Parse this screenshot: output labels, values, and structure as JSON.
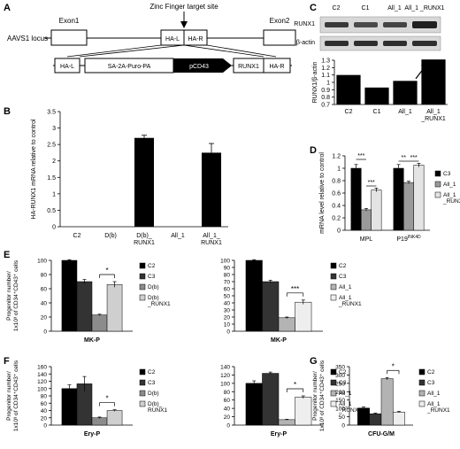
{
  "panels": {
    "A": {
      "label": "A",
      "locus_label": "AAVS1 locus",
      "zf_label": "Zinc Finger target site",
      "exon1": "Exon1",
      "exon2": "Exon2",
      "hal": "HA-L",
      "har": "HA-R",
      "cassette": [
        "HA-L",
        "SA-2A-Puro-PA",
        "pCD43",
        "RUNX1",
        "HA-R"
      ]
    },
    "C_blot": {
      "label": "C",
      "lanes": [
        "C2",
        "C1",
        "All_1",
        "All_1 _RUNX1"
      ],
      "rows": [
        "RUNX1",
        "β-actin"
      ]
    }
  },
  "chart_data": [
    {
      "panel": "C",
      "type": "bar",
      "categories": [
        "C2",
        "C1",
        "All_1",
        "All_1 _RUNX1"
      ],
      "values": [
        1.1,
        0.93,
        1.02,
        1.31
      ],
      "ylabel": "RUNX1/β-actin",
      "ylim": [
        0.7,
        1.3
      ],
      "yticks": [
        0.7,
        0.8,
        0.9,
        1.0,
        1.1,
        1.2,
        1.3
      ],
      "ytick_labels": [
        "0.7",
        "0.8",
        "0.9",
        "1",
        "1.1",
        "1.2",
        "1.3"
      ],
      "annotations": [
        "arrow pointing to All_1_RUNX1 bar"
      ]
    },
    {
      "panel": "B",
      "type": "bar",
      "categories": [
        "C2",
        "D(b)",
        "D(b)_ RUNX1",
        "All_1",
        "All_1_ RUNX1"
      ],
      "values": [
        0,
        0,
        2.7,
        0,
        2.25
      ],
      "errors": [
        0,
        0,
        0.08,
        0,
        0.28
      ],
      "ylabel": "HA-RUNX1 mRNA relative to control",
      "ylim": [
        0,
        3.5
      ],
      "yticks": [
        0,
        0.5,
        1,
        1.5,
        2,
        2.5,
        3,
        3.5
      ],
      "ytick_labels": [
        "0",
        "0.5",
        "1",
        "1.5",
        "2",
        "2.5",
        "3",
        "3.5"
      ]
    },
    {
      "panel": "D",
      "type": "bar",
      "categories": [
        "MPL",
        "P19INK4D"
      ],
      "series": [
        {
          "name": "C3",
          "values": [
            1.0,
            1.0
          ],
          "errors": [
            0.06,
            0.06
          ],
          "color": "#000000"
        },
        {
          "name": "All_1",
          "values": [
            0.33,
            0.77
          ],
          "errors": [
            0.02,
            0.02
          ],
          "color": "#9a9a9a"
        },
        {
          "name": "All_1 _RUNX1",
          "values": [
            0.65,
            1.05
          ],
          "errors": [
            0.03,
            0.03
          ],
          "color": "#e4e4e4"
        }
      ],
      "ylabel": "mRNA level relative to control",
      "ylim": [
        0,
        1.2
      ],
      "yticks": [
        0,
        0.2,
        0.4,
        0.6,
        0.8,
        1.0,
        1.2
      ],
      "ytick_labels": [
        "0",
        "0.2",
        "0.4",
        "0.6",
        "0.8",
        "1",
        "1.2"
      ],
      "significance": [
        "***",
        "***",
        "**",
        "***"
      ]
    },
    {
      "panel": "E-left",
      "type": "bar",
      "categories": [
        "MK-P"
      ],
      "series": [
        {
          "name": "C2",
          "values": [
            100
          ],
          "errors": [
            1
          ],
          "color": "#000000"
        },
        {
          "name": "C3",
          "values": [
            70
          ],
          "errors": [
            3
          ],
          "color": "#333333"
        },
        {
          "name": "D(b)",
          "values": [
            23
          ],
          "errors": [
            1
          ],
          "color": "#8c8c8c"
        },
        {
          "name": "D(b) _RUNX1",
          "values": [
            66
          ],
          "errors": [
            4
          ],
          "color": "#cfcfcf"
        }
      ],
      "ylabel": "Progenitor number/ 1x10³ of CD34⁺CD43⁺ cells",
      "ylim": [
        0,
        100
      ],
      "yticks": [
        0,
        20,
        40,
        60,
        80,
        100
      ],
      "ytick_labels": [
        "0",
        "20",
        "40",
        "60",
        "80",
        "100"
      ],
      "significance": [
        "*"
      ]
    },
    {
      "panel": "E-right",
      "type": "bar",
      "categories": [
        "MK-P"
      ],
      "series": [
        {
          "name": "C2",
          "values": [
            100
          ],
          "errors": [
            1
          ],
          "color": "#000000"
        },
        {
          "name": "C3",
          "values": [
            70
          ],
          "errors": [
            2
          ],
          "color": "#333333"
        },
        {
          "name": "All_1",
          "values": [
            19
          ],
          "errors": [
            1
          ],
          "color": "#b3b3b3"
        },
        {
          "name": "All_1 _RUNX1",
          "values": [
            41
          ],
          "errors": [
            3
          ],
          "color": "#eeeeee"
        }
      ],
      "ylim": [
        0,
        100
      ],
      "yticks": [
        0,
        10,
        20,
        30,
        40,
        50,
        60,
        70,
        80,
        90,
        100
      ],
      "ytick_labels": [
        "0",
        "10",
        "20",
        "30",
        "40",
        "50",
        "60",
        "70",
        "80",
        "90",
        "100"
      ],
      "significance": [
        "***"
      ]
    },
    {
      "panel": "F-left",
      "type": "bar",
      "categories": [
        "Ery-P"
      ],
      "series": [
        {
          "name": "C2",
          "values": [
            100
          ],
          "errors": [
            10
          ],
          "color": "#000000"
        },
        {
          "name": "C3",
          "values": [
            113
          ],
          "errors": [
            20
          ],
          "color": "#333333"
        },
        {
          "name": "D(b)",
          "values": [
            20
          ],
          "errors": [
            2
          ],
          "color": "#8c8c8c"
        },
        {
          "name": "D(b)_ RUNX1",
          "values": [
            40
          ],
          "errors": [
            2
          ],
          "color": "#cfcfcf"
        }
      ],
      "ylabel": "Progenitor number/ 1x10³ of CD34⁺CD43⁺ cells",
      "ylim": [
        0,
        160
      ],
      "yticks": [
        0,
        20,
        40,
        60,
        80,
        100,
        120,
        140,
        160
      ],
      "ytick_labels": [
        "0",
        "20",
        "40",
        "60",
        "80",
        "100",
        "120",
        "140",
        "160"
      ],
      "significance": [
        "*"
      ]
    },
    {
      "panel": "F-right",
      "type": "bar",
      "categories": [
        "Ery-P"
      ],
      "series": [
        {
          "name": "C2",
          "values": [
            100
          ],
          "errors": [
            6
          ],
          "color": "#000000"
        },
        {
          "name": "C3",
          "values": [
            124
          ],
          "errors": [
            3
          ],
          "color": "#333333"
        },
        {
          "name": "All_1",
          "values": [
            13
          ],
          "errors": [
            1
          ],
          "color": "#b3b3b3"
        },
        {
          "name": "All_1 _RUNX1",
          "values": [
            67
          ],
          "errors": [
            3
          ],
          "color": "#eeeeee"
        }
      ],
      "ylim": [
        0,
        140
      ],
      "yticks": [
        0,
        20,
        40,
        60,
        80,
        100,
        120,
        140
      ],
      "ytick_labels": [
        "0",
        "20",
        "40",
        "60",
        "80",
        "100",
        "120",
        "140"
      ],
      "significance": [
        "*"
      ]
    },
    {
      "panel": "G",
      "type": "bar",
      "categories": [
        "CFU-G/M"
      ],
      "series": [
        {
          "name": "C2",
          "values": [
            102
          ],
          "errors": [
            6
          ],
          "color": "#000000"
        },
        {
          "name": "C3",
          "values": [
            68
          ],
          "errors": [
            4
          ],
          "color": "#333333"
        },
        {
          "name": "All_1",
          "values": [
            278
          ],
          "errors": [
            7
          ],
          "color": "#b3b3b3"
        },
        {
          "name": "All_1 _RUNX1",
          "values": [
            78
          ],
          "errors": [
            4
          ],
          "color": "#eeeeee"
        }
      ],
      "ylabel": "Progenitor number/ 1x10³ of CD34⁺CD43⁺ cells",
      "ylim": [
        0,
        350
      ],
      "yticks": [
        0,
        50,
        100,
        150,
        200,
        250,
        300,
        350
      ],
      "ytick_labels": [
        "0",
        "50",
        "100",
        "150",
        "200",
        "250",
        "300",
        "350"
      ],
      "significance": [
        "*"
      ]
    }
  ]
}
